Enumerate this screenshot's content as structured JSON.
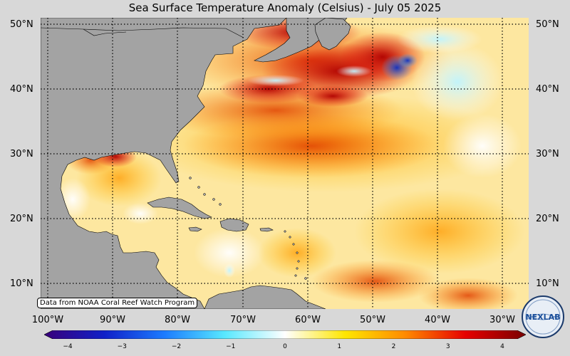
{
  "title": "Sea Surface Temperature Anomaly (Celsius) - July 05 2025",
  "credit": "Data from NOAA Coral Reef Watch Program",
  "lat_labels": [
    "50°N",
    "40°N",
    "30°N",
    "20°N",
    "10°N"
  ],
  "lon_labels": [
    "100°W",
    "90°W",
    "80°W",
    "70°W",
    "60°W",
    "50°W",
    "40°W",
    "30°W"
  ],
  "colorbar": {
    "ticks": [
      "−4",
      "−3",
      "−2",
      "−1",
      "0",
      "1",
      "2",
      "3",
      "4"
    ],
    "colors": [
      "#3a007a",
      "#1020c8",
      "#1c7cff",
      "#58e8ff",
      "#ffffff",
      "#ffe600",
      "#ff8a00",
      "#e60000",
      "#7a0000"
    ]
  },
  "logo_text": "NEXLAB",
  "map_colors": {
    "land": "#a3a3a3",
    "ocean_base": "#fde09a"
  }
}
